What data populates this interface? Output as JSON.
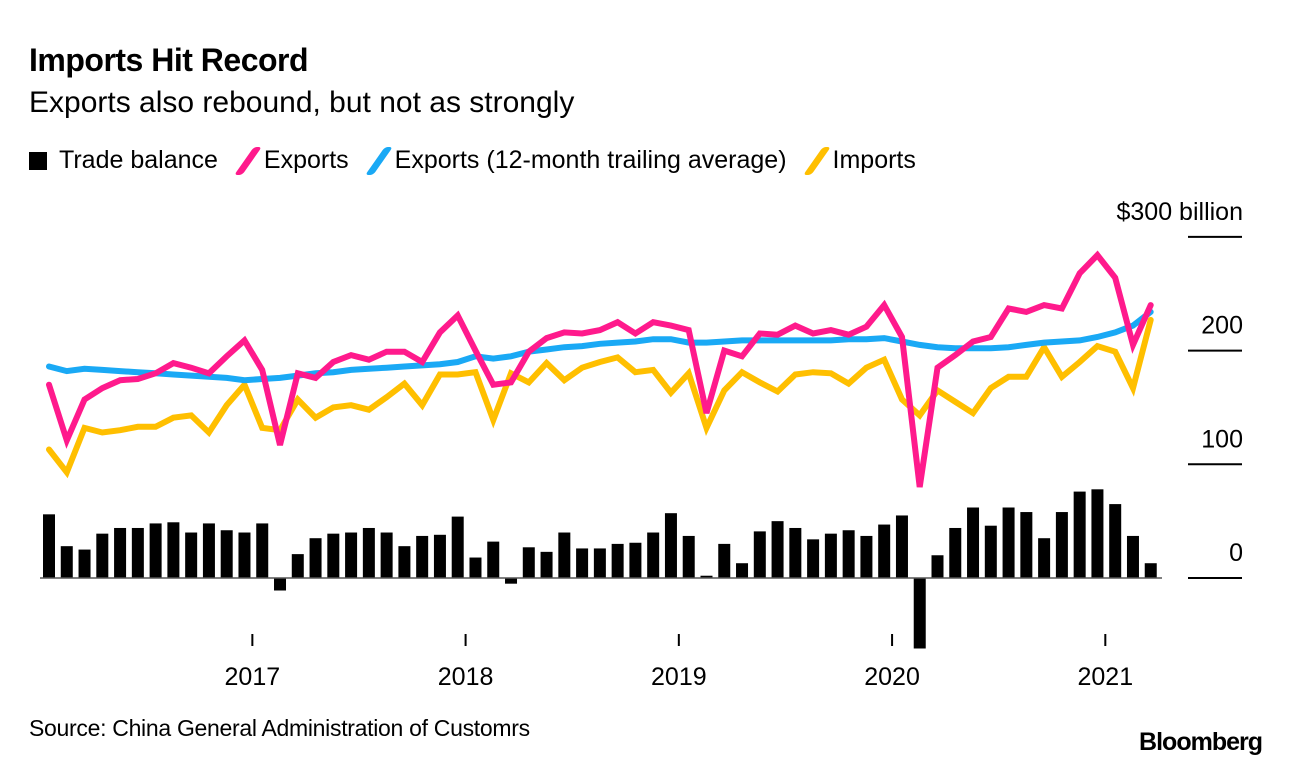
{
  "chart_data": {
    "type": "bar+line",
    "title": "Imports Hit Record",
    "subtitle": "Exports also rebound, but not as strongly",
    "source": "Source: China General Administration of Customrs",
    "brand": "Bloomberg",
    "ylabel": "$300 billion",
    "y_unit": "billion USD",
    "ylim": [
      -65,
      300
    ],
    "yticks": [
      0,
      100,
      200,
      300
    ],
    "ytick_labels": [
      "0",
      "100",
      "200",
      "$300 billion"
    ],
    "xticks": [
      "2017",
      "2018",
      "2019",
      "2020",
      "2021"
    ],
    "x_start": "2016-01",
    "x_end": "2021-03",
    "legend_position": "top-left",
    "grid": false,
    "colors": {
      "trade_balance": "#000000",
      "exports": "#ff1a8c",
      "exports_avg": "#1aa9f5",
      "imports": "#ffbf00"
    },
    "legend": [
      {
        "key": "trade_balance",
        "label": "Trade balance",
        "kind": "bar"
      },
      {
        "key": "exports",
        "label": "Exports",
        "kind": "line"
      },
      {
        "key": "exports_avg",
        "label": "Exports (12-month trailing average)",
        "kind": "line"
      },
      {
        "key": "imports",
        "label": "Imports",
        "kind": "line"
      }
    ],
    "series": [
      {
        "name": "Trade balance",
        "key": "trade_balance",
        "type": "bar",
        "values": [
          56,
          28,
          25,
          39,
          44,
          44,
          48,
          49,
          40,
          48,
          42,
          40,
          48,
          -11,
          21,
          35,
          39,
          40,
          44,
          40,
          28,
          37,
          38,
          54,
          18,
          32,
          -5,
          27,
          23,
          40,
          26,
          26,
          30,
          31,
          40,
          57,
          37,
          2,
          30,
          13,
          41,
          50,
          44,
          34,
          39,
          42,
          37,
          47,
          55,
          -62,
          20,
          44,
          62,
          46,
          62,
          58,
          35,
          58,
          76,
          78,
          65,
          37,
          13
        ]
      },
      {
        "name": "Exports",
        "key": "exports",
        "type": "line",
        "values": [
          170,
          121,
          157,
          167,
          174,
          175,
          180,
          189,
          185,
          180,
          195,
          209,
          183,
          117,
          180,
          176,
          190,
          196,
          192,
          199,
          199,
          190,
          216,
          231,
          200,
          170,
          172,
          199,
          211,
          216,
          215,
          218,
          225,
          215,
          225,
          222,
          218,
          145,
          200,
          195,
          215,
          214,
          222,
          215,
          218,
          214,
          221,
          240,
          212,
          80,
          185,
          196,
          208,
          212,
          237,
          234,
          240,
          237,
          268,
          284,
          264,
          205,
          240
        ]
      },
      {
        "name": "Exports (12-month trailing average)",
        "key": "exports_avg",
        "type": "line",
        "values": [
          186,
          182,
          184,
          183,
          182,
          181,
          180,
          179,
          178,
          177,
          176,
          174,
          175,
          176,
          178,
          180,
          181,
          183,
          184,
          185,
          186,
          187,
          188,
          190,
          195,
          193,
          195,
          199,
          201,
          203,
          204,
          206,
          207,
          208,
          210,
          210,
          207,
          207,
          208,
          209,
          209,
          209,
          209,
          209,
          209,
          210,
          210,
          211,
          208,
          205,
          203,
          202,
          202,
          202,
          203,
          205,
          207,
          208,
          209,
          212,
          216,
          222,
          234
        ]
      },
      {
        "name": "Imports",
        "key": "imports",
        "type": "line",
        "values": [
          113,
          93,
          132,
          128,
          130,
          133,
          133,
          141,
          143,
          128,
          152,
          170,
          132,
          130,
          157,
          141,
          150,
          152,
          148,
          159,
          171,
          152,
          179,
          179,
          181,
          139,
          180,
          172,
          189,
          174,
          185,
          190,
          194,
          181,
          183,
          163,
          180,
          132,
          165,
          181,
          172,
          164,
          179,
          181,
          180,
          171,
          185,
          192,
          157,
          143,
          165,
          155,
          145,
          167,
          177,
          177,
          203,
          177,
          190,
          204,
          199,
          167,
          227
        ]
      }
    ]
  }
}
